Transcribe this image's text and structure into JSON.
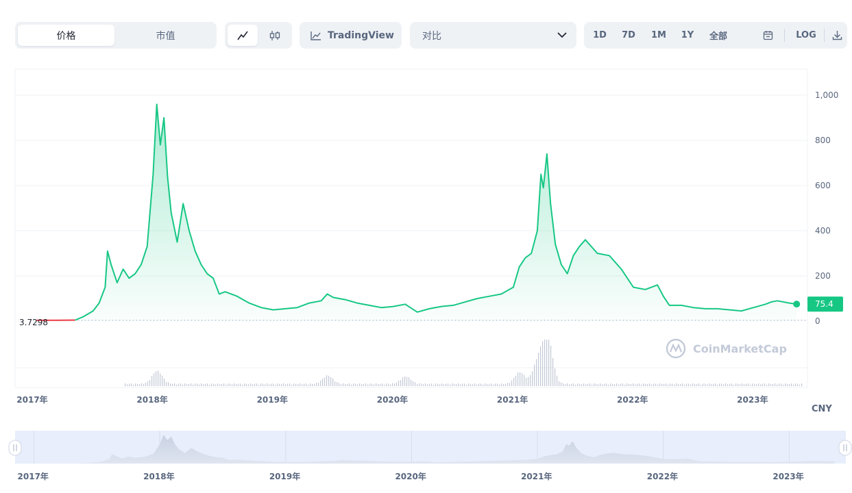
{
  "toolbar": {
    "view_toggle": {
      "price_label": "价格",
      "marketcap_label": "市值",
      "selected": "价格"
    },
    "chart_style": {
      "line_icon": "line-chart-icon",
      "candle_icon": "candlestick-icon",
      "selected": "line"
    },
    "tradingview_label": "TradingView",
    "compare_label": "对比",
    "ranges": [
      "1D",
      "7D",
      "1M",
      "1Y",
      "全部"
    ],
    "calendar_icon": "calendar-icon",
    "log_label": "LOG",
    "download_icon": "download-icon"
  },
  "colors": {
    "line_up": "#16c784",
    "line_start": "#ea3943",
    "axis_text": "#58667e",
    "grid": "#eff2f5",
    "volume": "#a6b0c3",
    "navigator_bg": "#e8eefb"
  },
  "watermark": "CoinMarketCap",
  "chart_data": {
    "type": "area",
    "currency_label": "CNY",
    "start_value": 3.7298,
    "start_value_label": "3.7298",
    "current_value": 75.4,
    "current_value_label": "75.4",
    "ylim": [
      0,
      1000
    ],
    "yticks": [
      0,
      200,
      400,
      600,
      800,
      1000
    ],
    "ytick_labels": [
      "0",
      "200",
      "400",
      "600",
      "800",
      "1,000"
    ],
    "x_year_labels": [
      "2017年",
      "2018年",
      "2019年",
      "2020年",
      "2021年",
      "2022年",
      "2023年"
    ],
    "x_year_values": [
      2017,
      2018,
      2019,
      2020,
      2021,
      2022,
      2023
    ],
    "xlim": [
      2016.85,
      2023.45
    ],
    "grid": true,
    "series": [
      {
        "points": [
          [
            2017.03,
            3.7
          ],
          [
            2017.2,
            3.7
          ],
          [
            2017.35,
            4.5
          ],
          [
            2017.42,
            20
          ],
          [
            2017.5,
            45
          ],
          [
            2017.55,
            80
          ],
          [
            2017.6,
            150
          ],
          [
            2017.62,
            310
          ],
          [
            2017.65,
            250
          ],
          [
            2017.7,
            170
          ],
          [
            2017.75,
            230
          ],
          [
            2017.8,
            190
          ],
          [
            2017.85,
            210
          ],
          [
            2017.9,
            250
          ],
          [
            2017.95,
            330
          ],
          [
            2018.0,
            650
          ],
          [
            2018.03,
            960
          ],
          [
            2018.06,
            780
          ],
          [
            2018.09,
            900
          ],
          [
            2018.12,
            640
          ],
          [
            2018.15,
            480
          ],
          [
            2018.2,
            350
          ],
          [
            2018.25,
            520
          ],
          [
            2018.3,
            400
          ],
          [
            2018.35,
            310
          ],
          [
            2018.4,
            250
          ],
          [
            2018.45,
            210
          ],
          [
            2018.5,
            190
          ],
          [
            2018.55,
            120
          ],
          [
            2018.6,
            130
          ],
          [
            2018.7,
            110
          ],
          [
            2018.8,
            80
          ],
          [
            2018.9,
            60
          ],
          [
            2019.0,
            50
          ],
          [
            2019.1,
            55
          ],
          [
            2019.2,
            60
          ],
          [
            2019.3,
            80
          ],
          [
            2019.4,
            90
          ],
          [
            2019.45,
            120
          ],
          [
            2019.5,
            105
          ],
          [
            2019.6,
            95
          ],
          [
            2019.7,
            80
          ],
          [
            2019.8,
            70
          ],
          [
            2019.9,
            60
          ],
          [
            2020.0,
            65
          ],
          [
            2020.1,
            75
          ],
          [
            2020.2,
            40
          ],
          [
            2020.3,
            55
          ],
          [
            2020.4,
            65
          ],
          [
            2020.5,
            70
          ],
          [
            2020.6,
            85
          ],
          [
            2020.7,
            100
          ],
          [
            2020.8,
            110
          ],
          [
            2020.9,
            120
          ],
          [
            2021.0,
            150
          ],
          [
            2021.05,
            240
          ],
          [
            2021.1,
            280
          ],
          [
            2021.15,
            300
          ],
          [
            2021.2,
            400
          ],
          [
            2021.23,
            650
          ],
          [
            2021.25,
            590
          ],
          [
            2021.28,
            740
          ],
          [
            2021.31,
            520
          ],
          [
            2021.35,
            340
          ],
          [
            2021.4,
            250
          ],
          [
            2021.45,
            210
          ],
          [
            2021.5,
            290
          ],
          [
            2021.55,
            330
          ],
          [
            2021.6,
            360
          ],
          [
            2021.7,
            300
          ],
          [
            2021.8,
            290
          ],
          [
            2021.9,
            230
          ],
          [
            2022.0,
            150
          ],
          [
            2022.1,
            140
          ],
          [
            2022.2,
            160
          ],
          [
            2022.25,
            110
          ],
          [
            2022.3,
            70
          ],
          [
            2022.4,
            70
          ],
          [
            2022.5,
            60
          ],
          [
            2022.6,
            55
          ],
          [
            2022.7,
            55
          ],
          [
            2022.8,
            50
          ],
          [
            2022.9,
            45
          ],
          [
            2023.0,
            60
          ],
          [
            2023.1,
            75
          ],
          [
            2023.15,
            85
          ],
          [
            2023.2,
            90
          ],
          [
            2023.3,
            80
          ],
          [
            2023.36,
            75.4
          ]
        ]
      }
    ],
    "volume_peaks": [
      [
        2018.03,
        0.28
      ],
      [
        2019.45,
        0.18
      ],
      [
        2020.1,
        0.16
      ],
      [
        2021.05,
        0.25
      ],
      [
        2021.28,
        1.0
      ],
      [
        2021.2,
        0.45
      ]
    ]
  }
}
